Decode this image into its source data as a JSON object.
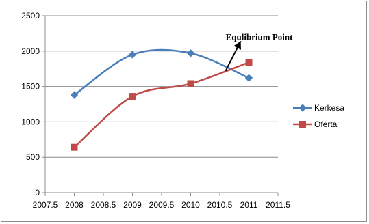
{
  "chart_data": {
    "type": "scatter",
    "title": "",
    "xlabel": "",
    "ylabel": "",
    "xlim": [
      2007.5,
      2011.5
    ],
    "ylim": [
      0,
      2500
    ],
    "x_ticks": [
      "2007.5",
      "2008",
      "2008.5",
      "2009",
      "2009.5",
      "2010",
      "2010.5",
      "2011",
      "2011.5"
    ],
    "y_ticks": [
      "0",
      "500",
      "1000",
      "1500",
      "2000",
      "2500"
    ],
    "grid": "horizontal",
    "legend_position": "right",
    "series": [
      {
        "name": "Kerkesa",
        "color": "#4a7ebb",
        "marker": "diamond",
        "x": [
          2008,
          2009,
          2010,
          2011
        ],
        "y": [
          1380,
          1950,
          1970,
          1620
        ]
      },
      {
        "name": "Oferta",
        "color": "#be4b48",
        "marker": "square",
        "x": [
          2008,
          2009,
          2010,
          2011
        ],
        "y": [
          640,
          1360,
          1540,
          1840
        ]
      }
    ],
    "annotation": {
      "text": "Equlibrium Point",
      "arrow_from": [
        2010.6,
        1720
      ],
      "arrow_to": [
        2010.86,
        2140
      ]
    }
  }
}
